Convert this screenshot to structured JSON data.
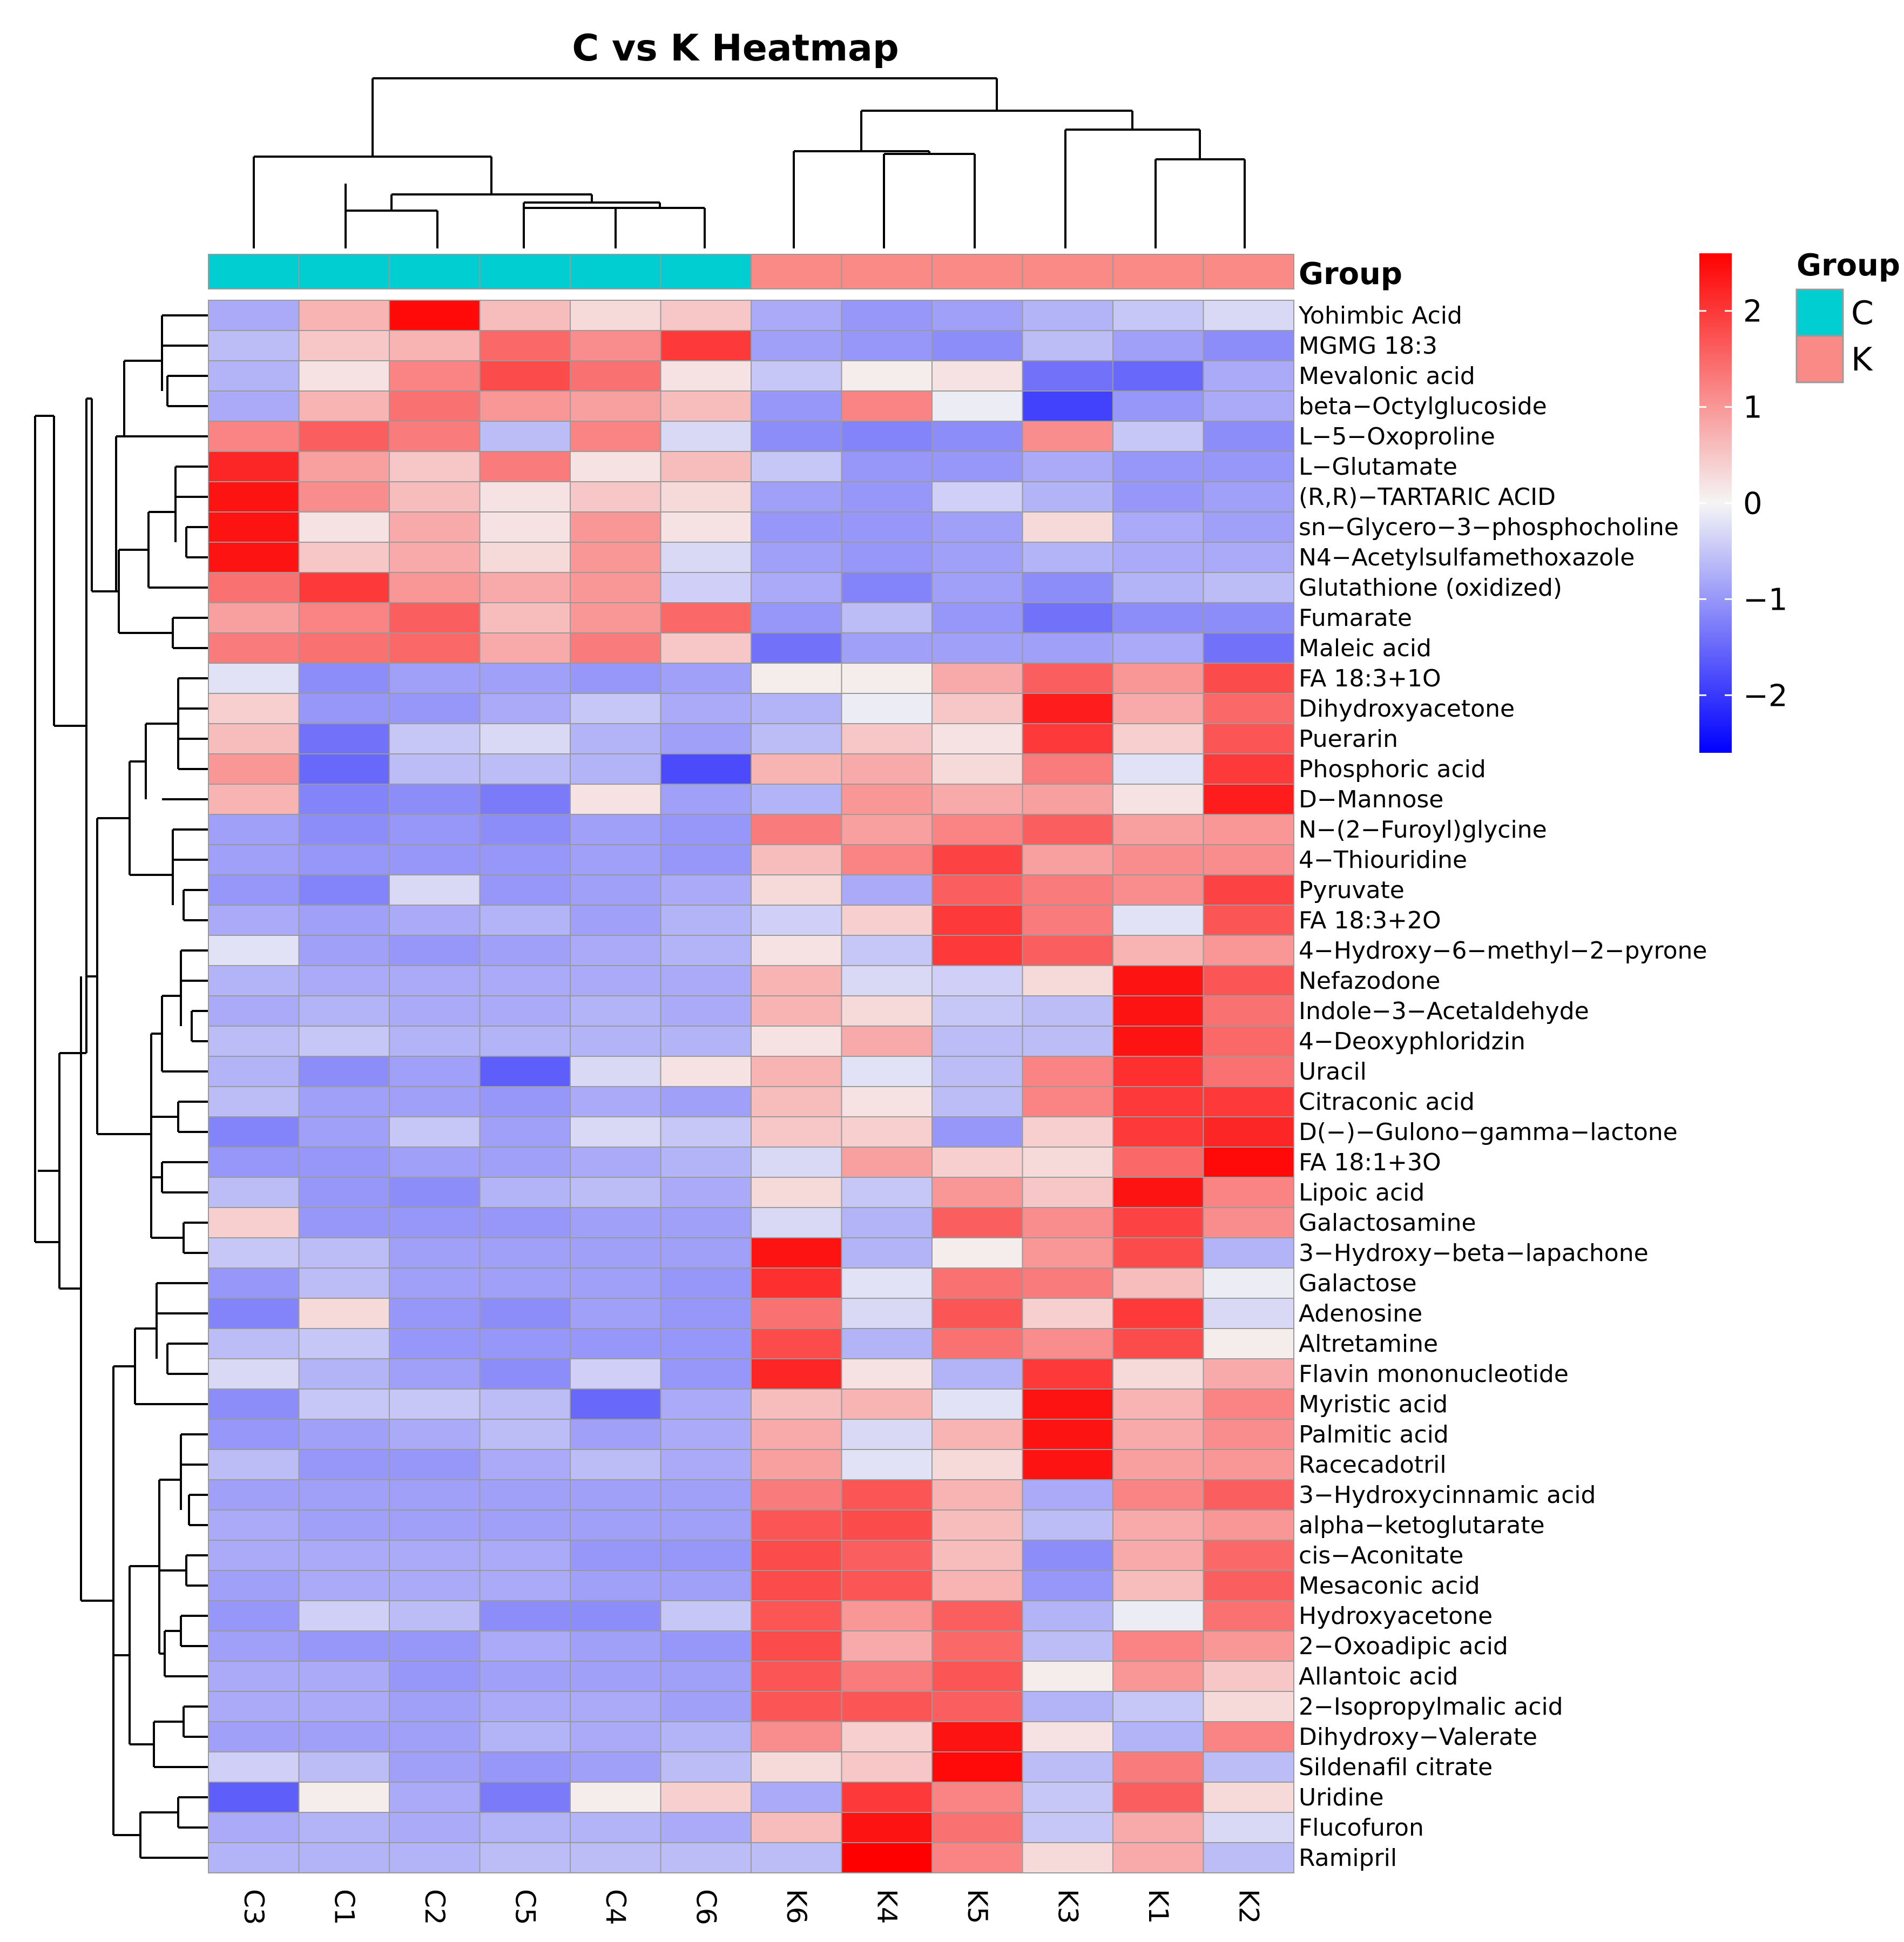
{
  "chart_data": {
    "type": "heatmap",
    "title": "C vs K Heatmap",
    "columns": [
      "C3",
      "C1",
      "C2",
      "C5",
      "C4",
      "C6",
      "K6",
      "K4",
      "K5",
      "K3",
      "K1",
      "K2"
    ],
    "column_groups": [
      "C",
      "C",
      "C",
      "C",
      "C",
      "C",
      "K",
      "K",
      "K",
      "K",
      "K",
      "K"
    ],
    "group_annotation_label": "Group",
    "legend_group": {
      "title": "Group",
      "items": [
        {
          "label": "C",
          "color": "#00CED1"
        },
        {
          "label": "K",
          "color": "#FA8A85"
        }
      ]
    },
    "colorbar": {
      "ticks": [
        2,
        1,
        0,
        -1,
        -2
      ],
      "tick_labels": [
        "2",
        "1",
        "0",
        "−1",
        "−2"
      ],
      "range": [
        -2.6,
        2.6
      ],
      "low_color": "#0000FF",
      "mid_color": "#F5F5F5",
      "high_color": "#FF0000"
    },
    "rows": [
      {
        "name": "Yohimbic Acid",
        "values": [
          -0.8,
          0.7,
          2.5,
          0.6,
          0.3,
          0.5,
          -0.8,
          -1.0,
          -0.9,
          -0.7,
          -0.5,
          -0.3
        ]
      },
      {
        "name": "MGMG 18:3",
        "values": [
          -0.6,
          0.5,
          0.7,
          1.5,
          1.1,
          2.0,
          -0.9,
          -1.0,
          -1.1,
          -0.6,
          -0.9,
          -1.1
        ]
      },
      {
        "name": "Mevalonic acid",
        "values": [
          -0.7,
          0.2,
          1.2,
          1.8,
          1.4,
          0.2,
          -0.5,
          0.1,
          0.2,
          -1.4,
          -1.5,
          -0.8
        ]
      },
      {
        "name": "beta−Octylglucoside",
        "values": [
          -0.8,
          0.7,
          1.4,
          1.0,
          0.9,
          0.6,
          -1.0,
          1.2,
          -0.1,
          -1.9,
          -1.0,
          -0.8
        ]
      },
      {
        "name": "L−5−Oxoproline",
        "values": [
          1.2,
          1.6,
          1.3,
          -0.6,
          1.2,
          -0.3,
          -1.1,
          -1.2,
          -1.1,
          1.1,
          -0.5,
          -1.1
        ]
      },
      {
        "name": "L−Glutamate",
        "values": [
          2.2,
          0.9,
          0.5,
          1.3,
          0.2,
          0.6,
          -0.5,
          -1.0,
          -1.0,
          -0.8,
          -1.0,
          -1.0
        ]
      },
      {
        "name": "(R,R)−TARTARIC ACID",
        "values": [
          2.4,
          1.1,
          0.6,
          0.2,
          0.5,
          0.3,
          -0.9,
          -1.0,
          -0.4,
          -0.7,
          -1.0,
          -0.9
        ]
      },
      {
        "name": "sn−Glycero−3−phosphocholine",
        "values": [
          2.4,
          0.2,
          0.8,
          0.2,
          1.0,
          0.2,
          -1.0,
          -1.0,
          -0.9,
          0.3,
          -0.8,
          -0.9
        ]
      },
      {
        "name": "N4−Acetylsulfamethoxazole",
        "values": [
          2.4,
          0.5,
          0.8,
          0.3,
          1.0,
          -0.3,
          -0.9,
          -1.0,
          -0.9,
          -0.7,
          -0.8,
          -0.8
        ]
      },
      {
        "name": "Glutathione (oxidized)",
        "values": [
          1.4,
          2.0,
          1.0,
          0.8,
          1.0,
          -0.4,
          -0.8,
          -1.2,
          -0.9,
          -1.1,
          -0.7,
          -0.6
        ]
      },
      {
        "name": "Fumarate",
        "values": [
          0.9,
          1.2,
          1.6,
          0.6,
          1.0,
          1.5,
          -1.0,
          -0.6,
          -1.0,
          -1.4,
          -1.1,
          -1.1
        ]
      },
      {
        "name": "Maleic acid",
        "values": [
          1.3,
          1.4,
          1.5,
          0.8,
          1.3,
          0.5,
          -1.4,
          -0.9,
          -0.9,
          -0.9,
          -0.8,
          -1.4
        ]
      },
      {
        "name": "FA 18:3+1O",
        "values": [
          -0.2,
          -1.1,
          -0.9,
          -0.9,
          -1.0,
          -0.9,
          0.1,
          0.1,
          0.8,
          1.6,
          1.0,
          1.8
        ]
      },
      {
        "name": "Dihydroxyacetone",
        "values": [
          0.4,
          -1.0,
          -1.0,
          -0.8,
          -0.5,
          -0.8,
          -0.7,
          -0.1,
          0.5,
          2.3,
          0.8,
          1.5
        ]
      },
      {
        "name": "Puerarin",
        "values": [
          0.6,
          -1.4,
          -0.5,
          -0.3,
          -0.7,
          -0.9,
          -0.6,
          0.5,
          0.2,
          2.0,
          0.4,
          1.7
        ]
      },
      {
        "name": "Phosphoric acid",
        "values": [
          1.0,
          -1.5,
          -0.6,
          -0.6,
          -0.7,
          -1.8,
          0.7,
          0.8,
          0.3,
          1.3,
          -0.2,
          2.0
        ]
      },
      {
        "name": "D−Mannose",
        "values": [
          0.7,
          -1.2,
          -1.1,
          -1.3,
          0.2,
          -0.9,
          -0.7,
          1.0,
          0.8,
          0.9,
          0.2,
          2.3
        ]
      },
      {
        "name": "N−(2−Furoyl)glycine",
        "values": [
          -0.9,
          -1.1,
          -1.0,
          -1.1,
          -0.9,
          -1.0,
          1.3,
          0.9,
          1.2,
          1.6,
          0.9,
          1.0
        ]
      },
      {
        "name": "4−Thiouridine",
        "values": [
          -0.9,
          -1.0,
          -1.0,
          -1.0,
          -0.9,
          -1.0,
          0.6,
          1.2,
          1.9,
          0.9,
          1.1,
          1.1
        ]
      },
      {
        "name": "Pyruvate",
        "values": [
          -1.0,
          -1.2,
          -0.3,
          -1.0,
          -0.9,
          -0.8,
          0.3,
          -0.8,
          1.6,
          1.3,
          1.1,
          1.9
        ]
      },
      {
        "name": "FA 18:3+2O",
        "values": [
          -0.8,
          -0.9,
          -0.8,
          -0.7,
          -0.9,
          -0.7,
          -0.4,
          0.4,
          2.0,
          1.3,
          -0.2,
          1.7
        ]
      },
      {
        "name": "4−Hydroxy−6−methyl−2−pyrone",
        "values": [
          -0.2,
          -0.9,
          -1.0,
          -0.9,
          -0.8,
          -0.7,
          0.2,
          -0.5,
          2.0,
          1.6,
          0.7,
          1.0
        ]
      },
      {
        "name": "Nefazodone",
        "values": [
          -0.7,
          -0.8,
          -0.8,
          -0.8,
          -0.8,
          -0.8,
          0.7,
          -0.3,
          -0.4,
          0.3,
          2.4,
          1.7
        ]
      },
      {
        "name": "Indole−3−Acetaldehyde",
        "values": [
          -0.8,
          -0.7,
          -0.8,
          -0.8,
          -0.7,
          -0.8,
          0.7,
          0.3,
          -0.5,
          -0.6,
          2.4,
          1.4
        ]
      },
      {
        "name": "4−Deoxyphloridzin",
        "values": [
          -0.6,
          -0.5,
          -0.7,
          -0.7,
          -0.7,
          -0.7,
          0.2,
          0.8,
          -0.6,
          -0.6,
          2.4,
          1.5
        ]
      },
      {
        "name": "Uracil",
        "values": [
          -0.7,
          -1.1,
          -0.9,
          -1.6,
          -0.3,
          0.2,
          0.7,
          -0.2,
          -0.6,
          1.2,
          2.1,
          1.4
        ]
      },
      {
        "name": "Citraconic acid",
        "values": [
          -0.6,
          -0.9,
          -0.9,
          -1.0,
          -0.8,
          -0.9,
          0.6,
          0.2,
          -0.6,
          1.2,
          2.0,
          2.0
        ]
      },
      {
        "name": "D(−)−Gulono−gamma−lactone",
        "values": [
          -1.2,
          -0.9,
          -0.5,
          -0.9,
          -0.3,
          -0.5,
          0.5,
          0.4,
          -1.0,
          0.4,
          2.0,
          2.2
        ]
      },
      {
        "name": "FA 18:1+3O",
        "values": [
          -1.0,
          -1.0,
          -0.9,
          -0.9,
          -0.8,
          -0.7,
          -0.3,
          0.9,
          0.4,
          0.3,
          1.5,
          2.5
        ]
      },
      {
        "name": "Lipoic acid",
        "values": [
          -0.6,
          -1.0,
          -1.1,
          -0.7,
          -0.6,
          -0.8,
          0.3,
          -0.5,
          1.0,
          0.5,
          2.4,
          1.2
        ]
      },
      {
        "name": "Galactosamine",
        "values": [
          0.4,
          -1.0,
          -1.0,
          -1.0,
          -0.9,
          -0.9,
          -0.3,
          -0.7,
          1.6,
          1.1,
          1.9,
          1.1
        ]
      },
      {
        "name": "3−Hydroxy−beta−lapachone",
        "values": [
          -0.5,
          -0.6,
          -0.9,
          -0.9,
          -0.9,
          -0.9,
          2.4,
          -0.7,
          0.1,
          1.0,
          1.8,
          -0.7
        ]
      },
      {
        "name": "Galactose",
        "values": [
          -1.0,
          -0.6,
          -0.9,
          -0.9,
          -0.9,
          -1.0,
          2.1,
          -0.2,
          1.4,
          1.3,
          0.6,
          -0.1
        ]
      },
      {
        "name": "Adenosine",
        "values": [
          -1.2,
          0.3,
          -1.0,
          -1.1,
          -0.9,
          -1.0,
          1.4,
          -0.3,
          1.7,
          0.4,
          2.0,
          -0.3
        ]
      },
      {
        "name": "Altretamine",
        "values": [
          -0.6,
          -0.5,
          -1.0,
          -1.0,
          -1.0,
          -1.0,
          1.8,
          -0.7,
          1.4,
          1.1,
          1.8,
          0.1
        ]
      },
      {
        "name": "Flavin mononucleotide",
        "values": [
          -0.3,
          -0.7,
          -0.9,
          -1.1,
          -0.4,
          -1.0,
          2.2,
          0.2,
          -0.7,
          2.0,
          0.3,
          0.8
        ]
      },
      {
        "name": "Myristic acid",
        "values": [
          -1.1,
          -0.5,
          -0.5,
          -0.6,
          -1.5,
          -0.8,
          0.6,
          0.7,
          -0.2,
          2.4,
          0.7,
          1.2
        ]
      },
      {
        "name": "Palmitic acid",
        "values": [
          -1.0,
          -0.9,
          -0.8,
          -0.6,
          -0.9,
          -0.8,
          0.8,
          -0.3,
          0.7,
          2.4,
          0.8,
          1.1
        ]
      },
      {
        "name": "Racecadotril",
        "values": [
          -0.6,
          -1.0,
          -1.0,
          -0.8,
          -0.6,
          -0.8,
          0.9,
          -0.2,
          0.3,
          2.4,
          0.9,
          1.0
        ]
      },
      {
        "name": "3−Hydroxycinnamic acid",
        "values": [
          -0.9,
          -0.9,
          -0.9,
          -0.9,
          -0.9,
          -0.9,
          1.3,
          1.7,
          0.7,
          -0.8,
          1.2,
          1.6
        ]
      },
      {
        "name": "alpha−ketoglutarate",
        "values": [
          -0.8,
          -0.9,
          -0.9,
          -0.9,
          -0.9,
          -0.9,
          1.7,
          1.8,
          0.6,
          -0.6,
          0.8,
          1.0
        ]
      },
      {
        "name": "cis−Aconitate",
        "values": [
          -0.8,
          -0.8,
          -0.8,
          -0.8,
          -1.0,
          -1.0,
          1.8,
          1.6,
          0.6,
          -1.1,
          0.8,
          1.5
        ]
      },
      {
        "name": "Mesaconic acid",
        "values": [
          -0.9,
          -0.8,
          -0.8,
          -0.8,
          -0.9,
          -0.9,
          1.8,
          1.7,
          0.7,
          -1.0,
          0.6,
          1.6
        ]
      },
      {
        "name": "Hydroxyacetone",
        "values": [
          -1.0,
          -0.4,
          -0.6,
          -1.1,
          -1.1,
          -0.5,
          1.7,
          1.0,
          1.6,
          -0.7,
          -0.1,
          1.4
        ]
      },
      {
        "name": "2−Oxoadipic acid",
        "values": [
          -0.9,
          -1.0,
          -1.0,
          -0.8,
          -0.9,
          -1.0,
          1.8,
          0.8,
          1.5,
          -0.6,
          1.2,
          1.0
        ]
      },
      {
        "name": "Allantoic acid",
        "values": [
          -0.8,
          -0.8,
          -1.0,
          -0.9,
          -0.9,
          -0.9,
          1.7,
          1.3,
          1.7,
          0.1,
          1.0,
          0.5
        ]
      },
      {
        "name": "2−Isopropylmalic acid",
        "values": [
          -0.8,
          -0.8,
          -0.9,
          -0.8,
          -0.8,
          -0.9,
          1.7,
          1.7,
          1.6,
          -0.7,
          -0.5,
          0.3
        ]
      },
      {
        "name": "Dihydroxy−Valerate",
        "values": [
          -0.9,
          -0.9,
          -0.9,
          -0.7,
          -0.8,
          -0.7,
          1.1,
          0.4,
          2.4,
          0.2,
          -0.7,
          1.2
        ]
      },
      {
        "name": "Sildenafil citrate",
        "values": [
          -0.4,
          -0.6,
          -0.9,
          -1.0,
          -0.9,
          -0.6,
          0.3,
          0.5,
          2.5,
          -0.6,
          1.3,
          -0.6
        ]
      },
      {
        "name": "Uridine",
        "values": [
          -1.6,
          0.1,
          -0.8,
          -1.3,
          0.1,
          0.4,
          -0.8,
          2.0,
          1.2,
          -0.5,
          1.6,
          0.3
        ]
      },
      {
        "name": "Flucofuron",
        "values": [
          -0.8,
          -0.7,
          -0.8,
          -0.7,
          -0.7,
          -0.8,
          0.6,
          2.4,
          1.4,
          -0.5,
          0.8,
          -0.3
        ]
      },
      {
        "name": "Ramipril",
        "values": [
          -0.7,
          -0.7,
          -0.7,
          -0.6,
          -0.6,
          -0.6,
          -0.6,
          2.6,
          1.2,
          0.3,
          0.8,
          -0.6
        ]
      }
    ]
  }
}
